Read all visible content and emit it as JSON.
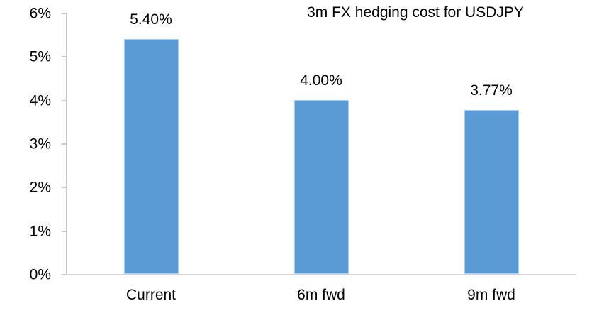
{
  "chart_data": {
    "type": "bar",
    "title": "3m FX hedging cost for USDJPY",
    "categories": [
      "Current",
      "6m fwd",
      "9m fwd"
    ],
    "values": [
      5.4,
      4.0,
      3.77
    ],
    "data_labels": [
      "5.40%",
      "4.00%",
      "3.77%"
    ],
    "ylim": [
      0,
      6
    ],
    "yticks": [
      0,
      1,
      2,
      3,
      4,
      5,
      6
    ],
    "ytick_labels": [
      "0%",
      "1%",
      "2%",
      "3%",
      "4%",
      "5%",
      "6%"
    ],
    "xlabel": "",
    "ylabel": "",
    "grid": false,
    "legend": "none",
    "data_label_position": "outside-end",
    "colors": {
      "bar_fill": "#5B9BD5",
      "bar_edge": "#A9CBEB",
      "y_axis_line": "#C9C9C9",
      "x_axis_line": "#D9D9D9",
      "text": "#000000"
    }
  }
}
